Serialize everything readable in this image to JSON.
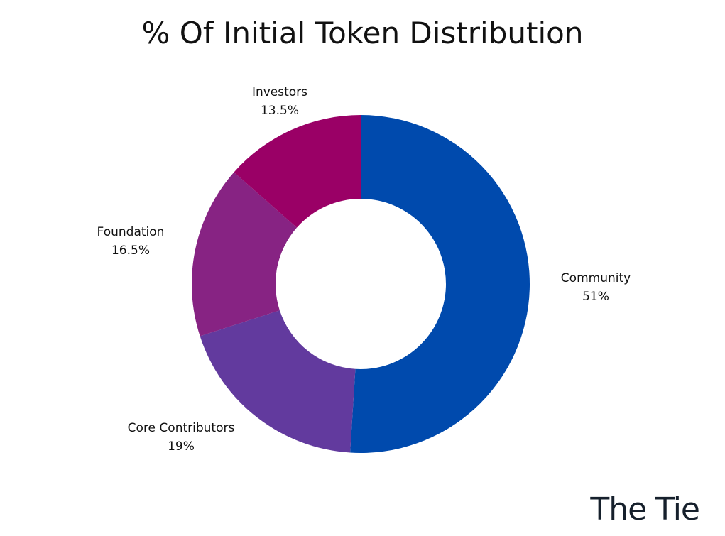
{
  "chart_data": {
    "type": "pie",
    "style": "donut",
    "title": "% Of Initial Token Distribution",
    "slices": [
      {
        "label": "Community",
        "value": 51,
        "display": "51%",
        "color": "#004aad"
      },
      {
        "label": "Core Contributors",
        "value": 19,
        "display": "19%",
        "color": "#623a9e"
      },
      {
        "label": "Foundation",
        "value": 16.5,
        "display": "16.5%",
        "color": "#872383"
      },
      {
        "label": "Investors",
        "value": 13.5,
        "display": "13.5%",
        "color": "#9a0066"
      }
    ]
  },
  "branding": {
    "logo_text": "The Tie"
  }
}
